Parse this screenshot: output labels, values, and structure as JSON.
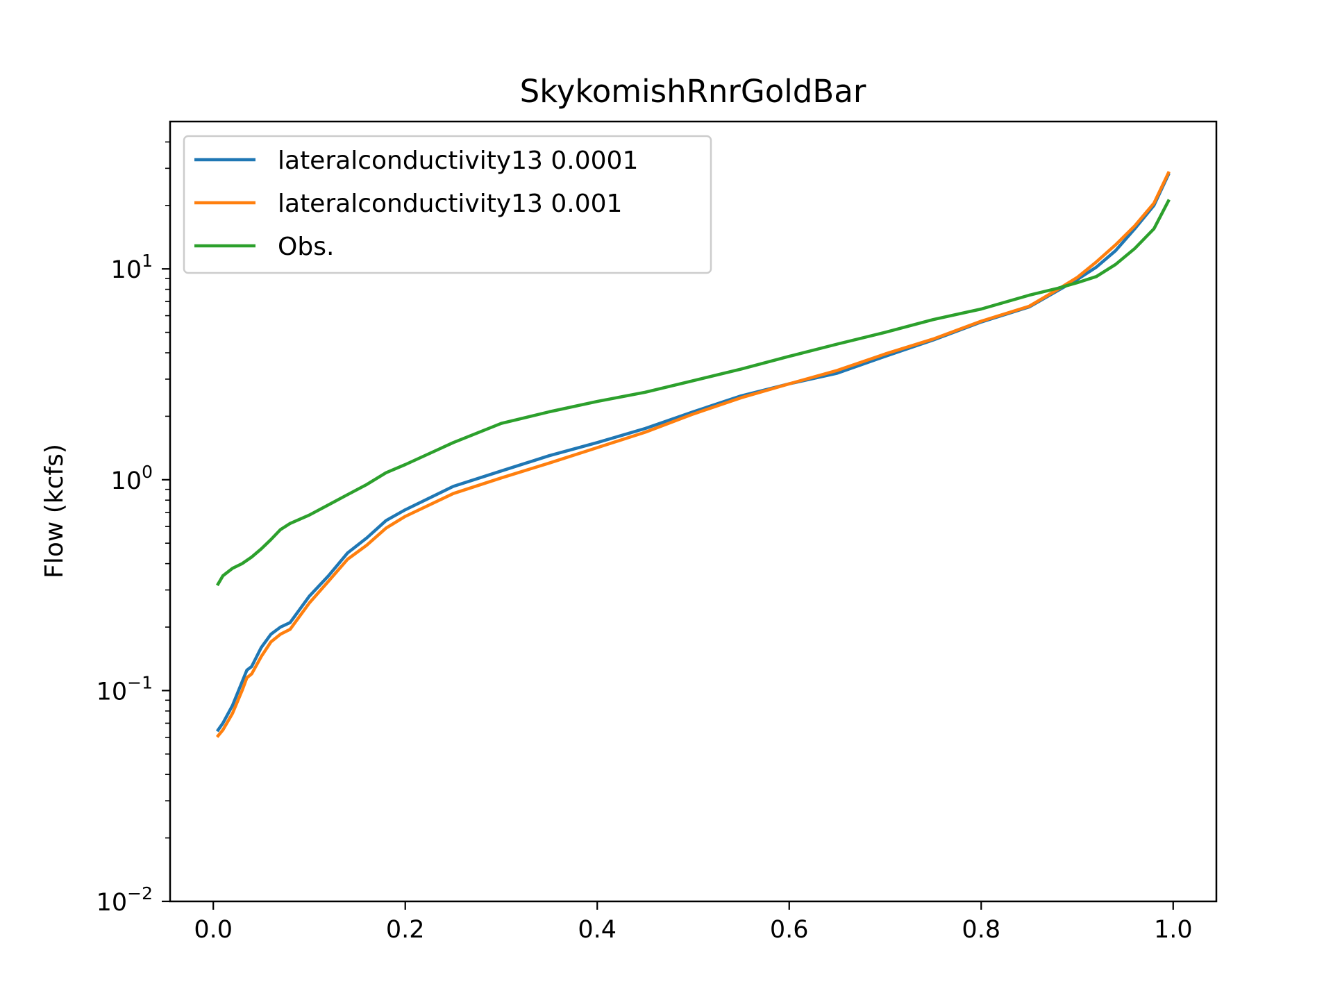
{
  "chart_data": {
    "type": "line",
    "title": "SkykomishRnrGoldBar",
    "xlabel": "",
    "ylabel": "Flow (kcfs)",
    "yscale": "log",
    "xlim": [
      -0.045,
      1.045
    ],
    "ylim": [
      0.01,
      50
    ],
    "x_ticks": [
      {
        "value": 0.0,
        "label": "0.0"
      },
      {
        "value": 0.2,
        "label": "0.2"
      },
      {
        "value": 0.4,
        "label": "0.4"
      },
      {
        "value": 0.6,
        "label": "0.6"
      },
      {
        "value": 0.8,
        "label": "0.8"
      },
      {
        "value": 1.0,
        "label": "1.0"
      }
    ],
    "y_ticks": [
      {
        "value": 0.01,
        "base": "10",
        "exp": "−2"
      },
      {
        "value": 0.1,
        "base": "10",
        "exp": "−1"
      },
      {
        "value": 1,
        "base": "10",
        "exp": "0"
      },
      {
        "value": 10,
        "base": "10",
        "exp": "1"
      }
    ],
    "legend_position": "upper-left",
    "grid": false,
    "series": [
      {
        "name": "lateralconductivity13 0.0001",
        "color": "#1f77b4",
        "x": [
          0.005,
          0.01,
          0.02,
          0.03,
          0.035,
          0.04,
          0.05,
          0.06,
          0.07,
          0.08,
          0.1,
          0.12,
          0.14,
          0.16,
          0.18,
          0.2,
          0.25,
          0.3,
          0.35,
          0.4,
          0.45,
          0.5,
          0.55,
          0.6,
          0.65,
          0.7,
          0.75,
          0.8,
          0.85,
          0.88,
          0.9,
          0.92,
          0.94,
          0.96,
          0.98,
          0.995
        ],
        "values": [
          0.065,
          0.07,
          0.085,
          0.11,
          0.125,
          0.13,
          0.16,
          0.185,
          0.2,
          0.21,
          0.28,
          0.35,
          0.45,
          0.53,
          0.64,
          0.72,
          0.93,
          1.1,
          1.3,
          1.5,
          1.75,
          2.1,
          2.5,
          2.85,
          3.2,
          3.85,
          4.6,
          5.6,
          6.6,
          7.9,
          8.9,
          10.2,
          12.2,
          15.5,
          20.0,
          28.0
        ]
      },
      {
        "name": "lateralconductivity13 0.001",
        "color": "#ff7f0e",
        "x": [
          0.005,
          0.01,
          0.02,
          0.03,
          0.035,
          0.04,
          0.05,
          0.06,
          0.07,
          0.08,
          0.1,
          0.12,
          0.14,
          0.16,
          0.18,
          0.2,
          0.25,
          0.3,
          0.35,
          0.4,
          0.45,
          0.5,
          0.55,
          0.6,
          0.65,
          0.7,
          0.75,
          0.8,
          0.85,
          0.88,
          0.9,
          0.92,
          0.94,
          0.96,
          0.98,
          0.995
        ],
        "values": [
          0.061,
          0.065,
          0.078,
          0.1,
          0.115,
          0.12,
          0.145,
          0.17,
          0.185,
          0.195,
          0.26,
          0.33,
          0.42,
          0.49,
          0.59,
          0.67,
          0.86,
          1.02,
          1.2,
          1.42,
          1.68,
          2.05,
          2.45,
          2.85,
          3.3,
          3.95,
          4.65,
          5.65,
          6.65,
          8.0,
          9.1,
          10.8,
          13.0,
          16.0,
          20.5,
          28.5
        ]
      },
      {
        "name": "Obs.",
        "color": "#2ca02c",
        "x": [
          0.005,
          0.01,
          0.02,
          0.03,
          0.04,
          0.05,
          0.06,
          0.07,
          0.08,
          0.1,
          0.12,
          0.14,
          0.16,
          0.18,
          0.2,
          0.25,
          0.3,
          0.35,
          0.4,
          0.45,
          0.5,
          0.55,
          0.6,
          0.65,
          0.7,
          0.75,
          0.8,
          0.85,
          0.88,
          0.9,
          0.92,
          0.94,
          0.96,
          0.98,
          0.995
        ],
        "values": [
          0.32,
          0.35,
          0.38,
          0.4,
          0.43,
          0.47,
          0.52,
          0.58,
          0.62,
          0.68,
          0.76,
          0.85,
          0.95,
          1.08,
          1.18,
          1.5,
          1.85,
          2.1,
          2.35,
          2.6,
          2.95,
          3.35,
          3.85,
          4.4,
          5.0,
          5.75,
          6.45,
          7.5,
          8.1,
          8.6,
          9.2,
          10.5,
          12.5,
          15.5,
          21.0
        ]
      }
    ]
  }
}
